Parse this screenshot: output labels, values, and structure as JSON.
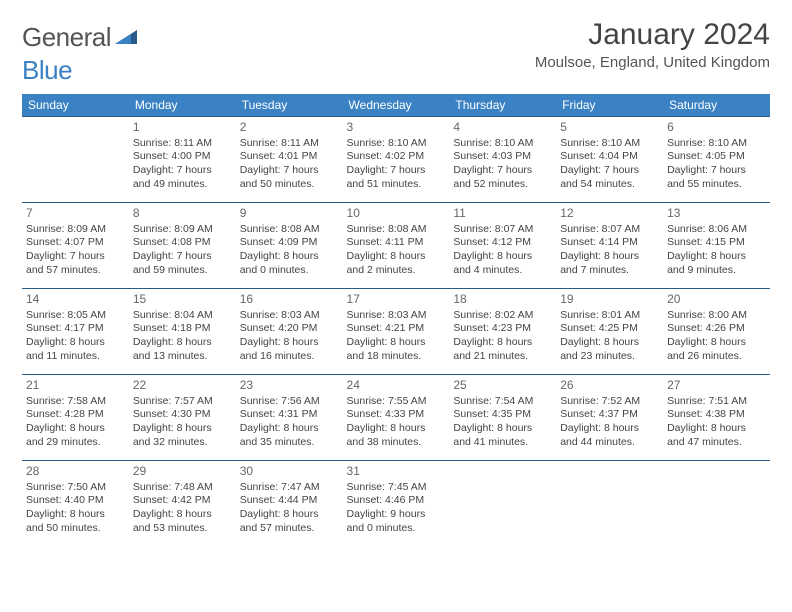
{
  "logo": {
    "text_gray": "General",
    "text_blue": "Blue"
  },
  "title": "January 2024",
  "location": "Moulsoe, England, United Kingdom",
  "colors": {
    "header_bg": "#3b82c4",
    "header_text": "#ffffff",
    "cell_border": "#2a5a8a",
    "body_text": "#444444",
    "daynum_text": "#666666",
    "logo_gray": "#555555",
    "logo_blue": "#3b82c4",
    "page_bg": "#ffffff"
  },
  "typography": {
    "title_fontsize": 30,
    "location_fontsize": 15,
    "weekday_fontsize": 12,
    "daynum_fontsize": 12,
    "cell_fontsize": 10.5,
    "logo_fontsize": 26,
    "font_family": "Arial"
  },
  "weekdays": [
    "Sunday",
    "Monday",
    "Tuesday",
    "Wednesday",
    "Thursday",
    "Friday",
    "Saturday"
  ],
  "weeks": [
    [
      null,
      {
        "n": "1",
        "sr": "8:11 AM",
        "ss": "4:00 PM",
        "dl": "7 hours and 49 minutes."
      },
      {
        "n": "2",
        "sr": "8:11 AM",
        "ss": "4:01 PM",
        "dl": "7 hours and 50 minutes."
      },
      {
        "n": "3",
        "sr": "8:10 AM",
        "ss": "4:02 PM",
        "dl": "7 hours and 51 minutes."
      },
      {
        "n": "4",
        "sr": "8:10 AM",
        "ss": "4:03 PM",
        "dl": "7 hours and 52 minutes."
      },
      {
        "n": "5",
        "sr": "8:10 AM",
        "ss": "4:04 PM",
        "dl": "7 hours and 54 minutes."
      },
      {
        "n": "6",
        "sr": "8:10 AM",
        "ss": "4:05 PM",
        "dl": "7 hours and 55 minutes."
      }
    ],
    [
      {
        "n": "7",
        "sr": "8:09 AM",
        "ss": "4:07 PM",
        "dl": "7 hours and 57 minutes."
      },
      {
        "n": "8",
        "sr": "8:09 AM",
        "ss": "4:08 PM",
        "dl": "7 hours and 59 minutes."
      },
      {
        "n": "9",
        "sr": "8:08 AM",
        "ss": "4:09 PM",
        "dl": "8 hours and 0 minutes."
      },
      {
        "n": "10",
        "sr": "8:08 AM",
        "ss": "4:11 PM",
        "dl": "8 hours and 2 minutes."
      },
      {
        "n": "11",
        "sr": "8:07 AM",
        "ss": "4:12 PM",
        "dl": "8 hours and 4 minutes."
      },
      {
        "n": "12",
        "sr": "8:07 AM",
        "ss": "4:14 PM",
        "dl": "8 hours and 7 minutes."
      },
      {
        "n": "13",
        "sr": "8:06 AM",
        "ss": "4:15 PM",
        "dl": "8 hours and 9 minutes."
      }
    ],
    [
      {
        "n": "14",
        "sr": "8:05 AM",
        "ss": "4:17 PM",
        "dl": "8 hours and 11 minutes."
      },
      {
        "n": "15",
        "sr": "8:04 AM",
        "ss": "4:18 PM",
        "dl": "8 hours and 13 minutes."
      },
      {
        "n": "16",
        "sr": "8:03 AM",
        "ss": "4:20 PM",
        "dl": "8 hours and 16 minutes."
      },
      {
        "n": "17",
        "sr": "8:03 AM",
        "ss": "4:21 PM",
        "dl": "8 hours and 18 minutes."
      },
      {
        "n": "18",
        "sr": "8:02 AM",
        "ss": "4:23 PM",
        "dl": "8 hours and 21 minutes."
      },
      {
        "n": "19",
        "sr": "8:01 AM",
        "ss": "4:25 PM",
        "dl": "8 hours and 23 minutes."
      },
      {
        "n": "20",
        "sr": "8:00 AM",
        "ss": "4:26 PM",
        "dl": "8 hours and 26 minutes."
      }
    ],
    [
      {
        "n": "21",
        "sr": "7:58 AM",
        "ss": "4:28 PM",
        "dl": "8 hours and 29 minutes."
      },
      {
        "n": "22",
        "sr": "7:57 AM",
        "ss": "4:30 PM",
        "dl": "8 hours and 32 minutes."
      },
      {
        "n": "23",
        "sr": "7:56 AM",
        "ss": "4:31 PM",
        "dl": "8 hours and 35 minutes."
      },
      {
        "n": "24",
        "sr": "7:55 AM",
        "ss": "4:33 PM",
        "dl": "8 hours and 38 minutes."
      },
      {
        "n": "25",
        "sr": "7:54 AM",
        "ss": "4:35 PM",
        "dl": "8 hours and 41 minutes."
      },
      {
        "n": "26",
        "sr": "7:52 AM",
        "ss": "4:37 PM",
        "dl": "8 hours and 44 minutes."
      },
      {
        "n": "27",
        "sr": "7:51 AM",
        "ss": "4:38 PM",
        "dl": "8 hours and 47 minutes."
      }
    ],
    [
      {
        "n": "28",
        "sr": "7:50 AM",
        "ss": "4:40 PM",
        "dl": "8 hours and 50 minutes."
      },
      {
        "n": "29",
        "sr": "7:48 AM",
        "ss": "4:42 PM",
        "dl": "8 hours and 53 minutes."
      },
      {
        "n": "30",
        "sr": "7:47 AM",
        "ss": "4:44 PM",
        "dl": "8 hours and 57 minutes."
      },
      {
        "n": "31",
        "sr": "7:45 AM",
        "ss": "4:46 PM",
        "dl": "9 hours and 0 minutes."
      },
      null,
      null,
      null
    ]
  ]
}
